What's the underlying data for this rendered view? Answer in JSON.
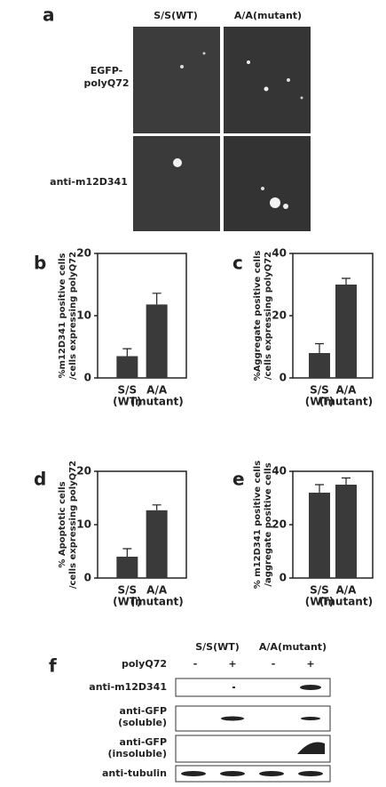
{
  "panel_a": {
    "letter": "a",
    "columns": [
      "S/S(WT)",
      "A/A(mutant)"
    ],
    "rows": [
      [
        "EGFP-",
        "polyQ72"
      ],
      [
        "anti-m12D341"
      ]
    ]
  },
  "chart_data": [
    {
      "type": "bar",
      "panel": "b",
      "ylabel": [
        "%m12D341 positive cells",
        "/cells expressing polyQ72"
      ],
      "categories": [
        [
          "S/S",
          "(WT)"
        ],
        [
          "A/A",
          "(mutant)"
        ]
      ],
      "values": [
        3.5,
        11.8
      ],
      "errors": [
        1.2,
        1.8
      ],
      "ylim": [
        0,
        20
      ],
      "yticks": [
        0,
        10,
        20
      ],
      "color": "#3a3a3a"
    },
    {
      "type": "bar",
      "panel": "c",
      "ylabel": [
        "%Aggregate positive cells",
        "/cells expressing polyQ72"
      ],
      "categories": [
        [
          "S/S",
          "(WT)"
        ],
        [
          "A/A",
          "(mutant)"
        ]
      ],
      "values": [
        8,
        30
      ],
      "errors": [
        3,
        2
      ],
      "ylim": [
        0,
        40
      ],
      "yticks": [
        0,
        20,
        40
      ],
      "color": "#3a3a3a"
    },
    {
      "type": "bar",
      "panel": "d",
      "ylabel": [
        "% Apoptotic cells",
        "/cells expressing polyQ72"
      ],
      "categories": [
        [
          "S/S",
          "(WT)"
        ],
        [
          "A/A",
          "(mutant)"
        ]
      ],
      "values": [
        4,
        12.7
      ],
      "errors": [
        1.5,
        1
      ],
      "ylim": [
        0,
        20
      ],
      "yticks": [
        0,
        10,
        20
      ],
      "color": "#3a3a3a"
    },
    {
      "type": "bar",
      "panel": "e",
      "ylabel": [
        "% m12D341 positive cells",
        "/aggregate positive cells"
      ],
      "categories": [
        [
          "S/S",
          "(WT)"
        ],
        [
          "A/A",
          "(mutant)"
        ]
      ],
      "values": [
        32,
        35
      ],
      "errors": [
        3,
        2.5
      ],
      "ylim": [
        0,
        40
      ],
      "yticks": [
        0,
        20,
        40
      ],
      "color": "#3a3a3a"
    }
  ],
  "panel_f": {
    "letter": "f",
    "columns": [
      "S/S(WT)",
      "A/A(mutant)"
    ],
    "treatment": "polyQ72",
    "lanes": [
      "-",
      "+",
      "-",
      "+"
    ],
    "rows": [
      [
        "anti-m12D341"
      ],
      [
        "anti-GFP",
        "(soluble)"
      ],
      [
        "anti-GFP",
        "(insoluble)"
      ],
      [
        "anti-tubulin"
      ]
    ]
  }
}
